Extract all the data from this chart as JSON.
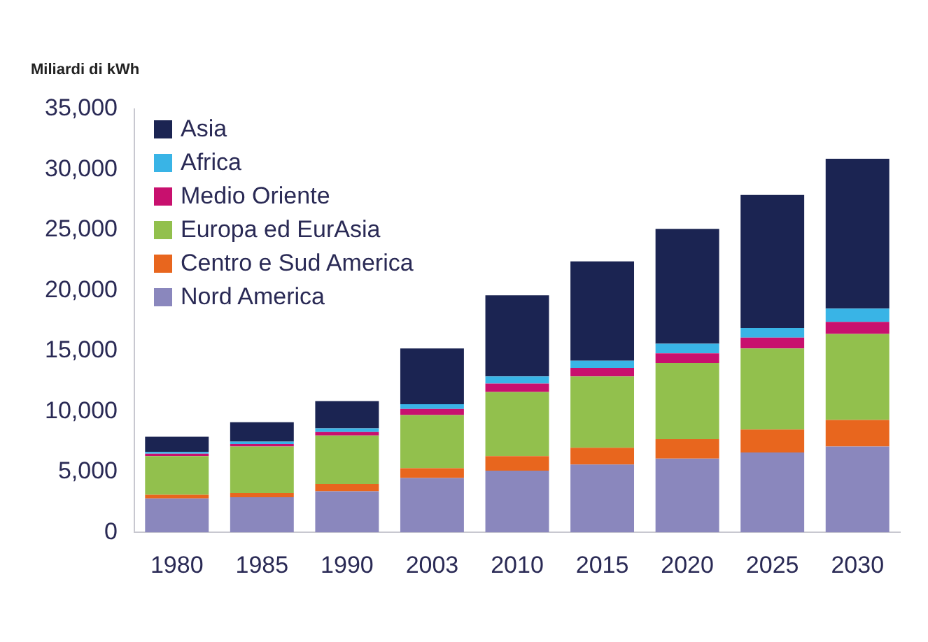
{
  "chart_data": {
    "type": "bar",
    "stacked": true,
    "ylabel": "Miliardi di kWh",
    "categories": [
      "1980",
      "1985",
      "1990",
      "2003",
      "2010",
      "2015",
      "2020",
      "2025",
      "2030"
    ],
    "series": [
      {
        "name": "Nord America",
        "color": "#8a87bd",
        "values": [
          2800,
          2900,
          3400,
          4500,
          5100,
          5600,
          6100,
          6600,
          7100
        ]
      },
      {
        "name": "Centro e Sud America",
        "color": "#e8661e",
        "values": [
          300,
          350,
          600,
          800,
          1200,
          1400,
          1600,
          1900,
          2200
        ]
      },
      {
        "name": "Europa ed EurAsia",
        "color": "#92c04d",
        "values": [
          3200,
          3850,
          4000,
          4400,
          5300,
          5900,
          6300,
          6700,
          7100
        ]
      },
      {
        "name": "Medio Oriente",
        "color": "#c8106e",
        "values": [
          200,
          200,
          300,
          500,
          700,
          700,
          800,
          900,
          1000
        ]
      },
      {
        "name": "Africa",
        "color": "#39b4e6",
        "values": [
          150,
          200,
          300,
          400,
          600,
          600,
          800,
          800,
          1100
        ]
      },
      {
        "name": "Asia",
        "color": "#1b2452",
        "values": [
          1250,
          1600,
          2250,
          4600,
          6700,
          8200,
          9500,
          11000,
          12400
        ]
      }
    ],
    "ylim": [
      0,
      35000
    ],
    "yticks": [
      {
        "value": 0,
        "label": "0"
      },
      {
        "value": 5000,
        "label": "5,000"
      },
      {
        "value": 10000,
        "label": "10,000"
      },
      {
        "value": 15000,
        "label": "15,000"
      },
      {
        "value": 20000,
        "label": "20,000"
      },
      {
        "value": 25000,
        "label": "25,000"
      },
      {
        "value": 30000,
        "label": "30,000"
      },
      {
        "value": 35000,
        "label": "35,000"
      }
    ],
    "grid": false,
    "legend": "top left"
  }
}
